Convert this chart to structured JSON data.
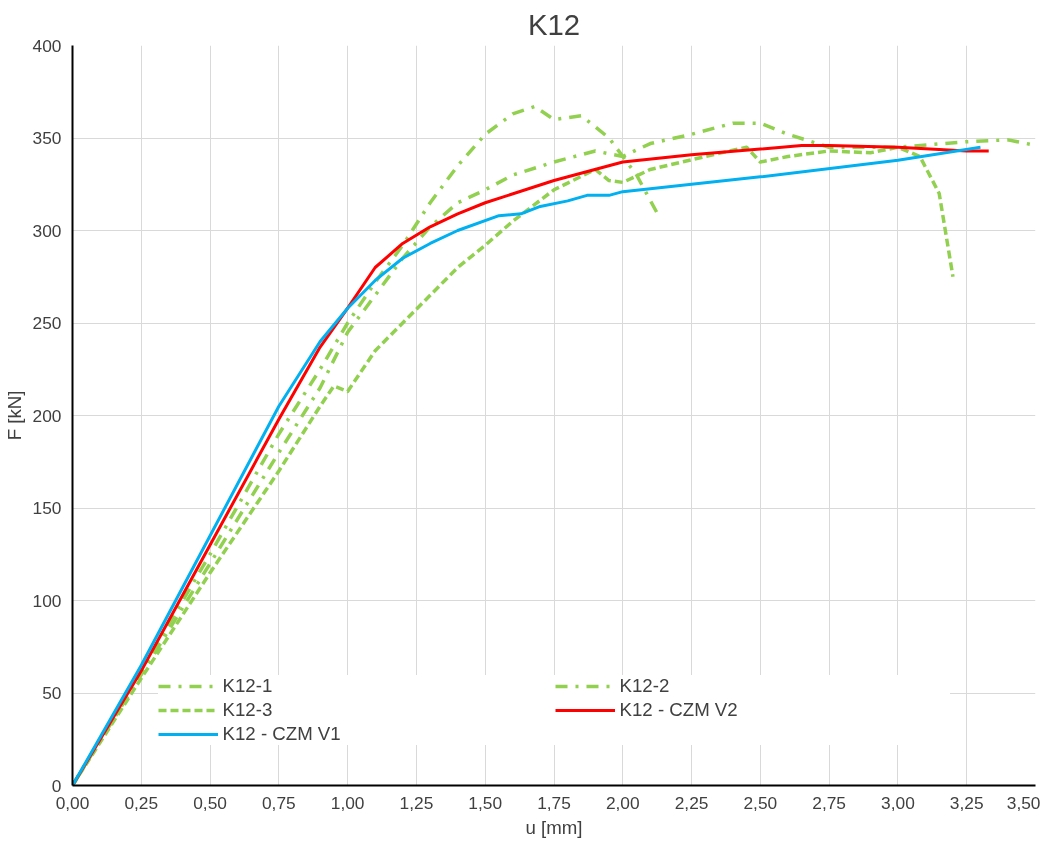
{
  "chart_data": {
    "type": "line",
    "title": "K12",
    "xlabel": "u [mm]",
    "ylabel": "F [kN]",
    "xlim": [
      0,
      3.5
    ],
    "ylim": [
      0,
      400
    ],
    "xticks": [
      {
        "value": 0,
        "label": "0,00"
      },
      {
        "value": 0.25,
        "label": "0,25"
      },
      {
        "value": 0.5,
        "label": "0,50"
      },
      {
        "value": 0.75,
        "label": "0,75"
      },
      {
        "value": 1.0,
        "label": "1,00"
      },
      {
        "value": 1.25,
        "label": "1,25"
      },
      {
        "value": 1.5,
        "label": "1,50"
      },
      {
        "value": 1.75,
        "label": "1,75"
      },
      {
        "value": 2.0,
        "label": "2,00"
      },
      {
        "value": 2.25,
        "label": "2,25"
      },
      {
        "value": 2.5,
        "label": "2,50"
      },
      {
        "value": 2.75,
        "label": "2,75"
      },
      {
        "value": 3.0,
        "label": "3,00"
      },
      {
        "value": 3.25,
        "label": "3,25"
      },
      {
        "value": 3.5,
        "label": "3,50"
      }
    ],
    "yticks": [
      0,
      50,
      100,
      150,
      200,
      250,
      300,
      350,
      400
    ],
    "grid": true,
    "legend": "bottom",
    "series": [
      {
        "name": "K12-1",
        "color": "#92d050",
        "line_style": "dashdot",
        "x": [
          0,
          0.1,
          0.25,
          0.5,
          0.75,
          0.9,
          1.0,
          1.1,
          1.2,
          1.3,
          1.4,
          1.5,
          1.6,
          1.68,
          1.75,
          1.85,
          1.95,
          2.05,
          2.13
        ],
        "values": [
          0,
          25,
          62,
          125,
          190,
          225,
          250,
          272,
          292,
          315,
          335,
          352,
          363,
          367,
          360,
          362,
          350,
          330,
          308
        ]
      },
      {
        "name": "K12-2",
        "color": "#92d050",
        "line_style": "dashdot",
        "x": [
          0,
          0.25,
          0.5,
          0.75,
          0.9,
          1.0,
          1.1,
          1.2,
          1.3,
          1.4,
          1.5,
          1.6,
          1.75,
          1.9,
          2.0,
          2.1,
          2.25,
          2.4,
          2.5,
          2.6,
          2.75,
          3.0,
          3.25,
          3.4,
          3.5
        ],
        "values": [
          0,
          60,
          120,
          180,
          215,
          245,
          265,
          285,
          302,
          315,
          322,
          330,
          337,
          343,
          340,
          347,
          352,
          358,
          358,
          352,
          345,
          345,
          348,
          349,
          346
        ]
      },
      {
        "name": "K12-3",
        "color": "#92d050",
        "line_style": "dashed",
        "x": [
          0,
          0.25,
          0.5,
          0.75,
          0.9,
          0.95,
          1.0,
          1.1,
          1.2,
          1.3,
          1.4,
          1.5,
          1.6,
          1.75,
          1.9,
          1.95,
          2.0,
          2.1,
          2.3,
          2.45,
          2.5,
          2.6,
          2.75,
          2.9,
          3.0,
          3.08,
          3.15,
          3.2
        ],
        "values": [
          0,
          58,
          115,
          170,
          205,
          216,
          213,
          235,
          250,
          265,
          280,
          292,
          305,
          322,
          333,
          327,
          326,
          333,
          340,
          345,
          337,
          340,
          343,
          342,
          345,
          340,
          320,
          275
        ]
      },
      {
        "name": "K12 - CZM V2",
        "color": "#ff0000",
        "line_style": "solid",
        "x": [
          0,
          0.25,
          0.5,
          0.75,
          0.9,
          1.0,
          1.1,
          1.2,
          1.3,
          1.4,
          1.5,
          1.75,
          2.0,
          2.25,
          2.5,
          2.65,
          2.75,
          3.0,
          3.25,
          3.33
        ],
        "values": [
          0,
          62,
          130,
          198,
          237,
          258,
          280,
          293,
          302,
          309,
          315,
          327,
          337,
          341,
          344,
          346,
          346,
          345,
          343,
          343
        ]
      },
      {
        "name": "K12 - CZM V1",
        "color": "#00b0f0",
        "line_style": "solid",
        "x": [
          0,
          0.25,
          0.5,
          0.75,
          0.9,
          1.0,
          1.1,
          1.2,
          1.3,
          1.4,
          1.55,
          1.63,
          1.7,
          1.8,
          1.87,
          1.95,
          2.0,
          2.5,
          3.0,
          3.3
        ],
        "values": [
          0,
          65,
          135,
          205,
          240,
          258,
          273,
          285,
          293,
          300,
          308,
          309,
          313,
          316,
          319,
          319,
          321,
          329,
          338,
          345
        ]
      }
    ]
  }
}
